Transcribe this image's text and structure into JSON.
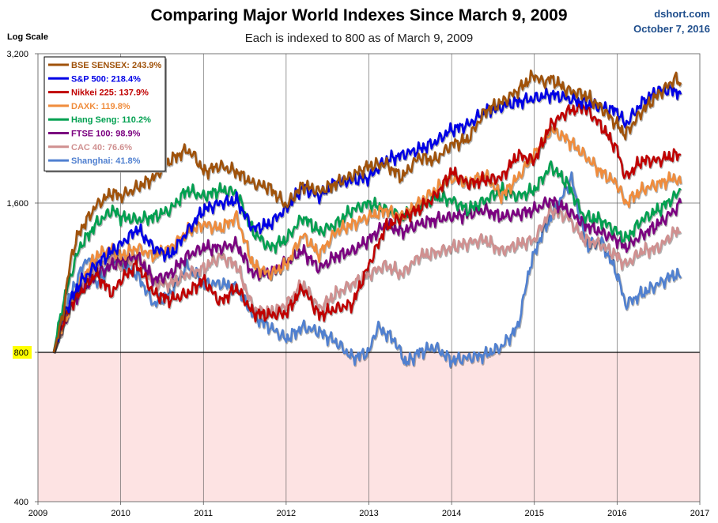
{
  "header": {
    "title": "Comparing Major World Indexes Since March 9, 2009",
    "subtitle": "Each is indexed to 800 as of March 9, 2009",
    "source": "dshort.com",
    "date": "October 7, 2016"
  },
  "chart_data": {
    "type": "line",
    "title": "Comparing Major World Indexes Since March 9, 2009",
    "subtitle": "Each is indexed to 800 as of March 9, 2009",
    "ylabel": "Log Scale",
    "yscale": "log",
    "ylim": [
      400,
      3200
    ],
    "yticks": [
      400,
      800,
      1600,
      3200
    ],
    "ytick_labels": [
      "400",
      "800",
      "1,600",
      "3,200"
    ],
    "xlim": [
      2009,
      2017
    ],
    "xticks": [
      2009,
      2010,
      2011,
      2012,
      2013,
      2014,
      2015,
      2016,
      2017
    ],
    "xtick_labels": [
      "2009",
      "2010",
      "2011",
      "2012",
      "2013",
      "2014",
      "2015",
      "2016",
      "2017"
    ],
    "baseline": 800,
    "below_baseline_shading": "#fde3e3",
    "grid": true,
    "legend_position": "top-left",
    "series": [
      {
        "name": "BSE SENSEX: 243.9%",
        "color": "#a0520a",
        "x": [
          2009.19,
          2009.3,
          2009.4,
          2009.5,
          2009.7,
          2009.9,
          2010.0,
          2010.2,
          2010.4,
          2010.6,
          2010.8,
          2010.9,
          2011.0,
          2011.2,
          2011.4,
          2011.6,
          2011.8,
          2012.0,
          2012.2,
          2012.4,
          2012.6,
          2012.8,
          2013.0,
          2013.2,
          2013.4,
          2013.6,
          2013.8,
          2014.0,
          2014.2,
          2014.4,
          2014.6,
          2014.8,
          2015.0,
          2015.1,
          2015.2,
          2015.4,
          2015.6,
          2015.8,
          2016.0,
          2016.1,
          2016.3,
          2016.5,
          2016.7,
          2016.77
        ],
        "values": [
          800,
          950,
          1250,
          1400,
          1580,
          1680,
          1650,
          1720,
          1800,
          1950,
          2050,
          1980,
          1850,
          1900,
          1850,
          1750,
          1720,
          1580,
          1740,
          1690,
          1750,
          1820,
          1900,
          1920,
          1800,
          1980,
          1950,
          2100,
          2150,
          2450,
          2550,
          2700,
          2900,
          2800,
          2850,
          2700,
          2650,
          2500,
          2300,
          2200,
          2450,
          2650,
          2850,
          2800
        ]
      },
      {
        "name": "S&P 500: 218.4%",
        "color": "#0000e6",
        "x": [
          2009.19,
          2009.3,
          2009.4,
          2009.5,
          2009.7,
          2009.9,
          2010.0,
          2010.2,
          2010.4,
          2010.6,
          2010.8,
          2011.0,
          2011.2,
          2011.4,
          2011.6,
          2011.8,
          2012.0,
          2012.2,
          2012.4,
          2012.6,
          2012.8,
          2013.0,
          2013.2,
          2013.4,
          2013.6,
          2013.8,
          2014.0,
          2014.2,
          2014.4,
          2014.6,
          2014.8,
          2015.0,
          2015.2,
          2015.4,
          2015.6,
          2015.8,
          2016.0,
          2016.1,
          2016.3,
          2016.5,
          2016.7,
          2016.77
        ],
        "values": [
          800,
          950,
          1020,
          1100,
          1200,
          1280,
          1320,
          1420,
          1300,
          1250,
          1400,
          1550,
          1600,
          1620,
          1420,
          1450,
          1560,
          1720,
          1650,
          1760,
          1780,
          1800,
          1950,
          2000,
          2050,
          2120,
          2250,
          2300,
          2450,
          2500,
          2560,
          2600,
          2650,
          2600,
          2550,
          2500,
          2450,
          2300,
          2550,
          2700,
          2700,
          2650
        ]
      },
      {
        "name": "Nikkei 225: 137.9%",
        "color": "#c00000",
        "x": [
          2009.19,
          2009.3,
          2009.4,
          2009.5,
          2009.7,
          2009.9,
          2010.0,
          2010.2,
          2010.4,
          2010.6,
          2010.8,
          2011.0,
          2011.2,
          2011.4,
          2011.6,
          2011.8,
          2012.0,
          2012.2,
          2012.4,
          2012.6,
          2012.8,
          2013.0,
          2013.2,
          2013.4,
          2013.6,
          2013.8,
          2014.0,
          2014.2,
          2014.4,
          2014.6,
          2014.8,
          2015.0,
          2015.2,
          2015.4,
          2015.6,
          2015.8,
          2016.0,
          2016.1,
          2016.3,
          2016.5,
          2016.7,
          2016.77
        ],
        "values": [
          800,
          920,
          1000,
          1050,
          1150,
          1050,
          1120,
          1200,
          1050,
          1020,
          1050,
          1120,
          1010,
          1080,
          960,
          950,
          960,
          1080,
          950,
          980,
          1000,
          1200,
          1430,
          1500,
          1550,
          1650,
          1850,
          1750,
          1780,
          1800,
          2000,
          1950,
          2300,
          2450,
          2500,
          2300,
          2050,
          1800,
          1950,
          1950,
          2000,
          2000
        ]
      },
      {
        "name": "DAXK: 119.8%",
        "color": "#f08c3c",
        "x": [
          2009.19,
          2009.3,
          2009.4,
          2009.5,
          2009.7,
          2009.9,
          2010.0,
          2010.2,
          2010.4,
          2010.6,
          2010.8,
          2011.0,
          2011.2,
          2011.4,
          2011.6,
          2011.8,
          2012.0,
          2012.2,
          2012.4,
          2012.6,
          2012.8,
          2013.0,
          2013.2,
          2013.4,
          2013.6,
          2013.8,
          2014.0,
          2014.2,
          2014.4,
          2014.6,
          2014.8,
          2015.0,
          2015.2,
          2015.4,
          2015.6,
          2015.8,
          2016.0,
          2016.1,
          2016.3,
          2016.5,
          2016.7,
          2016.77
        ],
        "values": [
          800,
          900,
          1000,
          1100,
          1250,
          1300,
          1250,
          1300,
          1250,
          1300,
          1400,
          1450,
          1420,
          1500,
          1200,
          1150,
          1200,
          1380,
          1260,
          1400,
          1450,
          1500,
          1550,
          1500,
          1600,
          1700,
          1800,
          1750,
          1830,
          1650,
          1800,
          2000,
          2250,
          2150,
          2000,
          1850,
          1750,
          1600,
          1700,
          1750,
          1800,
          1750
        ]
      },
      {
        "name": "Hang Seng: 110.2%",
        "color": "#00a050",
        "x": [
          2009.19,
          2009.3,
          2009.4,
          2009.5,
          2009.7,
          2009.9,
          2010.0,
          2010.2,
          2010.4,
          2010.6,
          2010.8,
          2011.0,
          2011.2,
          2011.4,
          2011.6,
          2011.8,
          2012.0,
          2012.2,
          2012.4,
          2012.6,
          2012.8,
          2013.0,
          2013.2,
          2013.4,
          2013.6,
          2013.8,
          2014.0,
          2014.2,
          2014.4,
          2014.6,
          2014.8,
          2015.0,
          2015.2,
          2015.4,
          2015.6,
          2015.8,
          2016.0,
          2016.1,
          2016.3,
          2016.5,
          2016.7,
          2016.77
        ],
        "values": [
          800,
          1000,
          1150,
          1300,
          1450,
          1550,
          1500,
          1480,
          1500,
          1550,
          1700,
          1650,
          1700,
          1680,
          1400,
          1300,
          1350,
          1500,
          1400,
          1450,
          1550,
          1600,
          1550,
          1500,
          1570,
          1650,
          1620,
          1550,
          1620,
          1700,
          1650,
          1700,
          1900,
          1750,
          1500,
          1480,
          1400,
          1350,
          1480,
          1550,
          1650,
          1700
        ]
      },
      {
        "name": "FTSE 100: 98.9%",
        "color": "#7b0080",
        "x": [
          2009.19,
          2009.3,
          2009.4,
          2009.5,
          2009.7,
          2009.9,
          2010.0,
          2010.2,
          2010.4,
          2010.6,
          2010.8,
          2011.0,
          2011.2,
          2011.4,
          2011.6,
          2011.8,
          2012.0,
          2012.2,
          2012.4,
          2012.6,
          2012.8,
          2013.0,
          2013.2,
          2013.4,
          2013.6,
          2013.8,
          2014.0,
          2014.2,
          2014.4,
          2014.6,
          2014.8,
          2015.0,
          2015.2,
          2015.4,
          2015.6,
          2015.8,
          2016.0,
          2016.1,
          2016.3,
          2016.5,
          2016.7,
          2016.77
        ],
        "values": [
          800,
          900,
          1000,
          1050,
          1150,
          1200,
          1220,
          1250,
          1120,
          1150,
          1250,
          1300,
          1300,
          1320,
          1150,
          1150,
          1220,
          1280,
          1180,
          1250,
          1280,
          1350,
          1450,
          1400,
          1450,
          1480,
          1500,
          1520,
          1550,
          1500,
          1520,
          1550,
          1620,
          1550,
          1450,
          1400,
          1350,
          1300,
          1380,
          1450,
          1550,
          1600
        ]
      },
      {
        "name": "CAC 40: 76.6%",
        "color": "#d09090",
        "x": [
          2009.19,
          2009.3,
          2009.4,
          2009.5,
          2009.7,
          2009.9,
          2010.0,
          2010.2,
          2010.4,
          2010.6,
          2010.8,
          2011.0,
          2011.2,
          2011.4,
          2011.6,
          2011.8,
          2012.0,
          2012.2,
          2012.4,
          2012.6,
          2012.8,
          2013.0,
          2013.2,
          2013.4,
          2013.6,
          2013.8,
          2014.0,
          2014.2,
          2014.4,
          2014.6,
          2014.8,
          2015.0,
          2015.2,
          2015.4,
          2015.6,
          2015.8,
          2016.0,
          2016.1,
          2016.3,
          2016.5,
          2016.7,
          2016.77
        ],
        "values": [
          800,
          900,
          1000,
          1080,
          1200,
          1250,
          1200,
          1250,
          1100,
          1100,
          1150,
          1180,
          1250,
          1200,
          980,
          960,
          1000,
          1100,
          980,
          1050,
          1100,
          1150,
          1200,
          1150,
          1250,
          1270,
          1300,
          1330,
          1350,
          1280,
          1320,
          1350,
          1550,
          1500,
          1350,
          1320,
          1250,
          1200,
          1280,
          1300,
          1400,
          1400
        ]
      },
      {
        "name": "Shanghai: 41.8%",
        "color": "#5080d0",
        "x": [
          2009.19,
          2009.3,
          2009.4,
          2009.5,
          2009.6,
          2009.7,
          2009.8,
          2009.9,
          2010.0,
          2010.2,
          2010.4,
          2010.6,
          2010.8,
          2011.0,
          2011.2,
          2011.4,
          2011.6,
          2011.8,
          2012.0,
          2012.2,
          2012.4,
          2012.6,
          2012.8,
          2013.0,
          2013.1,
          2013.3,
          2013.45,
          2013.6,
          2013.8,
          2014.0,
          2014.2,
          2014.4,
          2014.6,
          2014.8,
          2014.95,
          2015.1,
          2015.3,
          2015.45,
          2015.55,
          2015.65,
          2015.8,
          2016.0,
          2016.1,
          2016.3,
          2016.5,
          2016.7,
          2016.77
        ],
        "values": [
          800,
          950,
          1050,
          1150,
          1250,
          1100,
          1150,
          1250,
          1200,
          1150,
          1000,
          1050,
          1200,
          1100,
          1100,
          1080,
          950,
          900,
          850,
          900,
          880,
          840,
          780,
          800,
          900,
          850,
          760,
          800,
          820,
          770,
          780,
          790,
          820,
          900,
          1200,
          1400,
          1600,
          1800,
          1500,
          1300,
          1350,
          1150,
          1000,
          1050,
          1100,
          1150,
          1130
        ]
      }
    ]
  }
}
